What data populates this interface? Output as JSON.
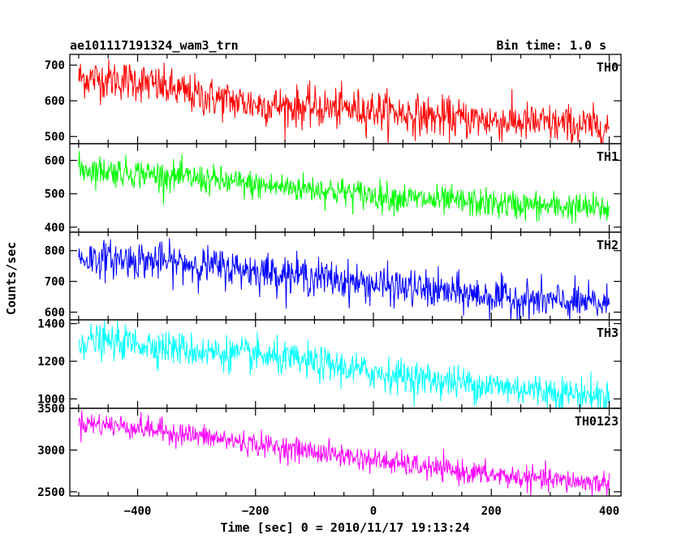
{
  "header": {
    "title": "ae101117191324_wam3_trn",
    "bin_time": "Bin time: 1.0 s"
  },
  "chart_data": {
    "type": "line",
    "xlabel": "Time [sec] 0 = 2010/11/17 19:13:24",
    "ylabel": "Counts/sec",
    "xlim": [
      -515,
      420
    ],
    "xticks": [
      -400,
      -200,
      0,
      200,
      400
    ],
    "x_range": [
      -500,
      400
    ],
    "bin_time_s": 1.0,
    "panels": [
      {
        "name": "TH0",
        "color": "#ff0000",
        "ylim": [
          480,
          730
        ],
        "yticks": [
          500,
          600,
          700
        ],
        "trend": [
          [
            -500,
            665
          ],
          [
            -400,
            655
          ],
          [
            -300,
            615
          ],
          [
            -200,
            590
          ],
          [
            -100,
            580
          ],
          [
            0,
            575
          ],
          [
            100,
            555
          ],
          [
            200,
            545
          ],
          [
            300,
            535
          ],
          [
            400,
            525
          ]
        ],
        "noise": 28
      },
      {
        "name": "TH1",
        "color": "#00ff00",
        "ylim": [
          385,
          650
        ],
        "yticks": [
          400,
          500,
          600
        ],
        "trend": [
          [
            -500,
            575
          ],
          [
            -400,
            562
          ],
          [
            -300,
            545
          ],
          [
            -200,
            525
          ],
          [
            -100,
            515
          ],
          [
            0,
            495
          ],
          [
            100,
            480
          ],
          [
            200,
            470
          ],
          [
            300,
            462
          ],
          [
            400,
            455
          ]
        ],
        "noise": 22
      },
      {
        "name": "TH2",
        "color": "#0000ff",
        "ylim": [
          575,
          860
        ],
        "yticks": [
          600,
          700,
          800
        ],
        "trend": [
          [
            -500,
            775
          ],
          [
            -400,
            770
          ],
          [
            -300,
            755
          ],
          [
            -200,
            735
          ],
          [
            -100,
            715
          ],
          [
            0,
            690
          ],
          [
            100,
            670
          ],
          [
            200,
            650
          ],
          [
            300,
            635
          ],
          [
            400,
            625
          ]
        ],
        "noise": 30
      },
      {
        "name": "TH3",
        "color": "#00ffff",
        "ylim": [
          950,
          1420
        ],
        "yticks": [
          1000,
          1200,
          1400
        ],
        "trend": [
          [
            -500,
            1310
          ],
          [
            -400,
            1295
          ],
          [
            -300,
            1255
          ],
          [
            -200,
            1230
          ],
          [
            -100,
            1190
          ],
          [
            0,
            1140
          ],
          [
            100,
            1100
          ],
          [
            200,
            1070
          ],
          [
            300,
            1040
          ],
          [
            400,
            1010
          ]
        ],
        "noise": 45
      },
      {
        "name": "TH0123",
        "color": "#ff00ff",
        "ylim": [
          2450,
          3500
        ],
        "yticks": [
          2500,
          3000,
          3500
        ],
        "trend": [
          [
            -500,
            3330
          ],
          [
            -400,
            3270
          ],
          [
            -300,
            3170
          ],
          [
            -200,
            3070
          ],
          [
            -100,
            2980
          ],
          [
            0,
            2880
          ],
          [
            100,
            2780
          ],
          [
            200,
            2700
          ],
          [
            300,
            2640
          ],
          [
            400,
            2600
          ]
        ],
        "noise": 70
      }
    ]
  }
}
